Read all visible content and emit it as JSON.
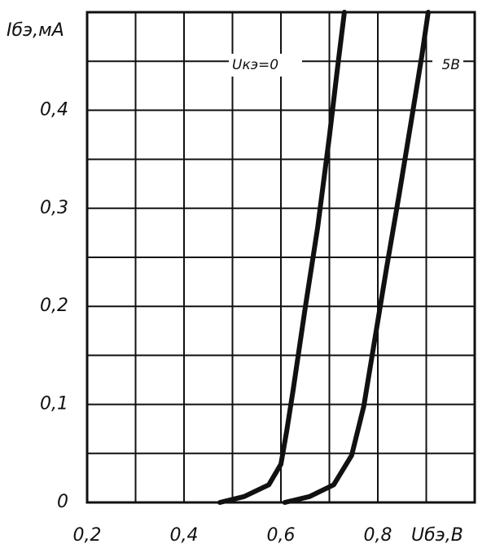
{
  "chart_data": {
    "type": "line",
    "y_label": "Iбэ,мА",
    "x_label": "Uбэ,В",
    "xlim": [
      0.2,
      1.0
    ],
    "ylim": [
      0,
      0.5
    ],
    "xticks": [
      {
        "value": 0.2,
        "label": "0,2"
      },
      {
        "value": 0.4,
        "label": "0,4"
      },
      {
        "value": 0.6,
        "label": "0,6"
      },
      {
        "value": 0.8,
        "label": "0,8"
      }
    ],
    "yticks": [
      0,
      {
        "value": 0.1,
        "label": "0,1"
      },
      {
        "value": 0.2,
        "label": "0,2"
      },
      {
        "value": 0.3,
        "label": "0,3"
      },
      {
        "value": 0.4,
        "label": "0,4"
      }
    ],
    "x_grid": [
      0.2,
      0.3,
      0.4,
      0.5,
      0.6,
      0.7,
      0.8,
      0.9,
      1.0
    ],
    "y_grid": [
      0,
      0.05,
      0.1,
      0.15,
      0.2,
      0.25,
      0.3,
      0.35,
      0.4,
      0.45,
      0.5
    ],
    "grid": true,
    "series": [
      {
        "name": "Uкэ=0",
        "color": "#111111",
        "x": [
          0.474,
          0.524,
          0.575,
          0.6,
          0.612,
          0.625,
          0.65,
          0.676,
          0.7,
          0.718,
          0.731
        ],
        "values": [
          0,
          0.006,
          0.018,
          0.039,
          0.073,
          0.114,
          0.198,
          0.281,
          0.373,
          0.448,
          0.5
        ]
      },
      {
        "name": "5В",
        "color": "#111111",
        "x": [
          0.608,
          0.659,
          0.709,
          0.746,
          0.771,
          0.793,
          0.818,
          0.844,
          0.869,
          0.891,
          0.904
        ],
        "values": [
          0,
          0.006,
          0.018,
          0.048,
          0.098,
          0.164,
          0.239,
          0.314,
          0.389,
          0.456,
          0.5
        ]
      }
    ]
  }
}
